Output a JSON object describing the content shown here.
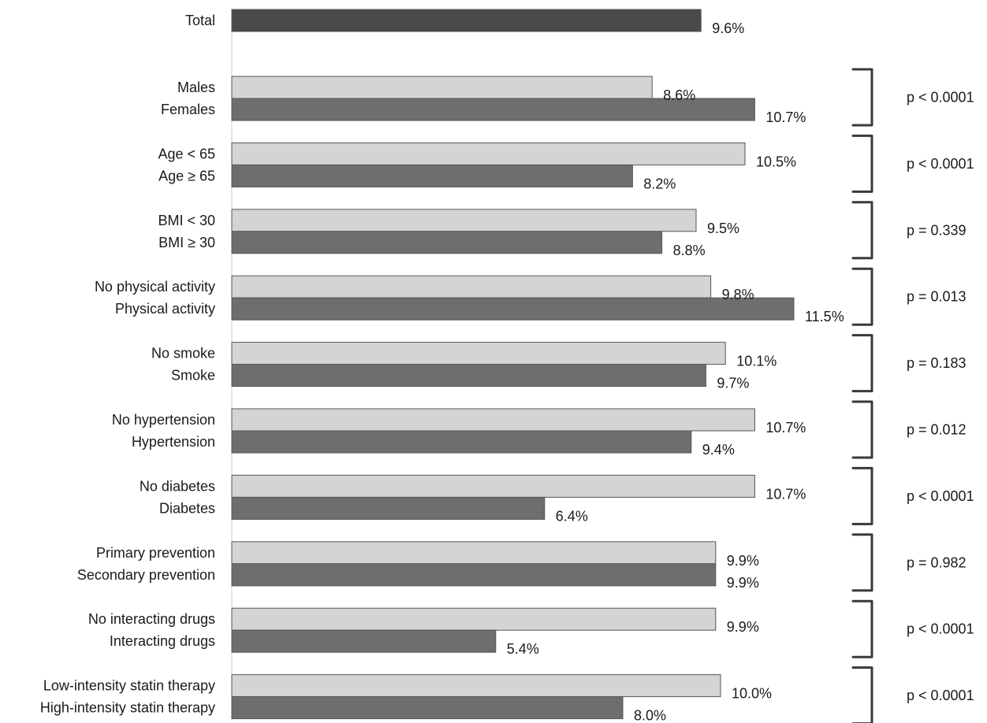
{
  "chart_data": {
    "type": "bar",
    "orientation": "horizontal",
    "title": "",
    "xlabel": "",
    "ylabel": "",
    "xlim": [
      0,
      12
    ],
    "grid": false,
    "legend": "none",
    "colors": {
      "total": "#4a4a4a",
      "first": "#d4d4d4",
      "second": "#6e6e6e",
      "bracket": "#3a3a3a"
    },
    "total": {
      "category": "Total",
      "value": 9.6,
      "value_label": "9.6%"
    },
    "groups": [
      {
        "categories": [
          "Males",
          "Females"
        ],
        "values": [
          8.6,
          10.7
        ],
        "value_labels": [
          "8.6%",
          "10.7%"
        ],
        "p_value": "p < 0.0001"
      },
      {
        "categories": [
          "Age < 65",
          "Age ≥ 65"
        ],
        "values": [
          10.5,
          8.2
        ],
        "value_labels": [
          "10.5%",
          "8.2%"
        ],
        "p_value": "p < 0.0001"
      },
      {
        "categories": [
          "BMI < 30",
          "BMI ≥ 30"
        ],
        "values": [
          9.5,
          8.8
        ],
        "value_labels": [
          "9.5%",
          "8.8%"
        ],
        "p_value": "p = 0.339"
      },
      {
        "categories": [
          "No physical activity",
          "Physical activity"
        ],
        "values": [
          9.8,
          11.5
        ],
        "value_labels": [
          "9.8%",
          "11.5%"
        ],
        "p_value": "p = 0.013"
      },
      {
        "categories": [
          "No smoke",
          "Smoke"
        ],
        "values": [
          10.1,
          9.7
        ],
        "value_labels": [
          "10.1%",
          "9.7%"
        ],
        "p_value": "p = 0.183"
      },
      {
        "categories": [
          "No hypertension",
          "Hypertension"
        ],
        "values": [
          10.7,
          9.4
        ],
        "value_labels": [
          "10.7%",
          "9.4%"
        ],
        "p_value": "p = 0.012"
      },
      {
        "categories": [
          "No diabetes",
          "Diabetes"
        ],
        "values": [
          10.7,
          6.4
        ],
        "value_labels": [
          "10.7%",
          "6.4%"
        ],
        "p_value": "p < 0.0001"
      },
      {
        "categories": [
          "Primary prevention",
          "Secondary prevention"
        ],
        "values": [
          9.9,
          9.9
        ],
        "value_labels": [
          "9.9%",
          "9.9%"
        ],
        "p_value": "p = 0.982"
      },
      {
        "categories": [
          "No interacting drugs",
          "Interacting drugs"
        ],
        "values": [
          9.9,
          5.4
        ],
        "value_labels": [
          "9.9%",
          "5.4%"
        ],
        "p_value": "p < 0.0001"
      },
      {
        "categories": [
          "Low-intensity statin therapy",
          "High-intensity statin therapy"
        ],
        "values": [
          10.0,
          8.0
        ],
        "value_labels": [
          "10.0%",
          "8.0%"
        ],
        "p_value": "p < 0.0001"
      }
    ]
  }
}
